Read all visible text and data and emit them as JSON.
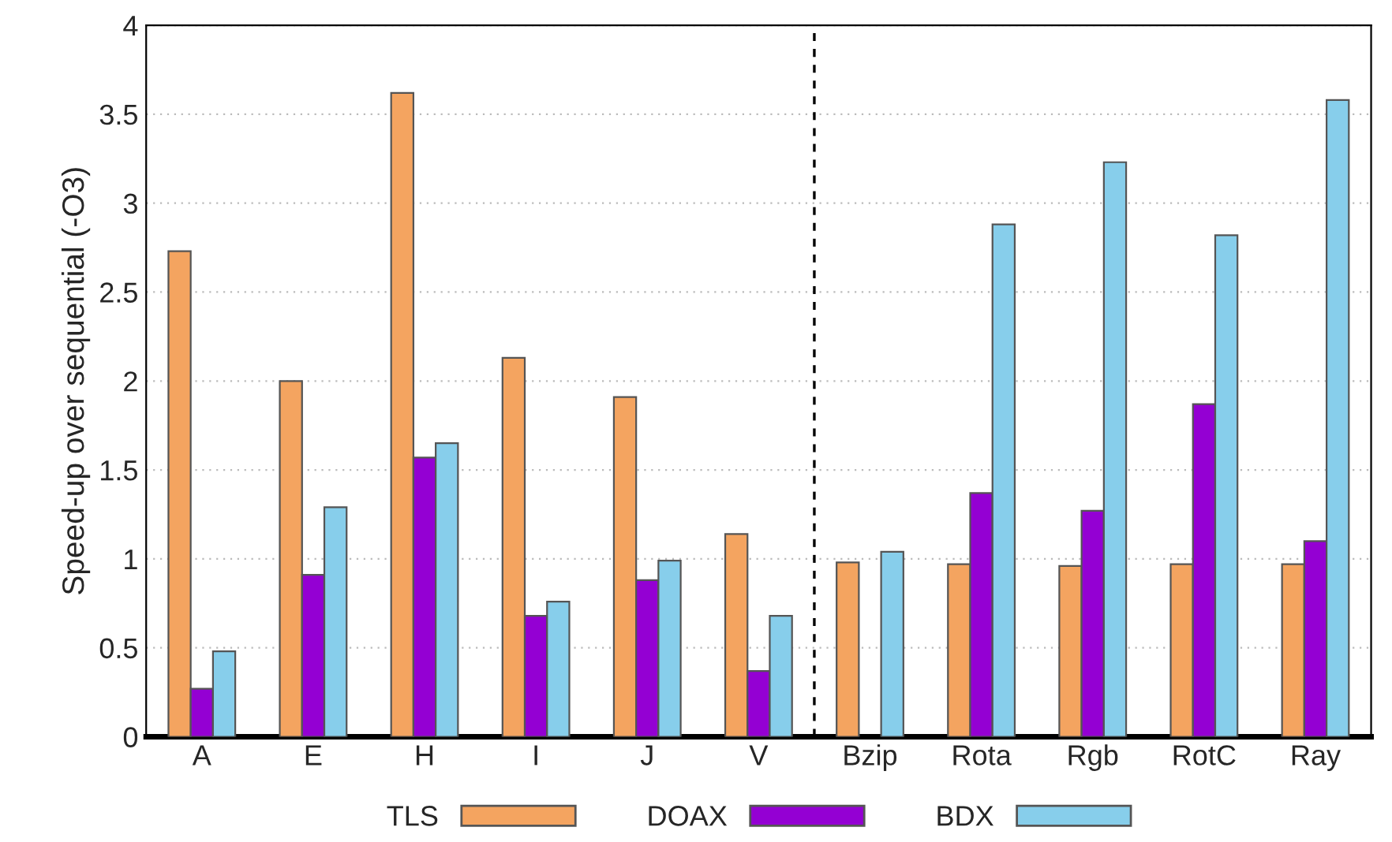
{
  "chart_data": {
    "type": "bar",
    "ylabel": "Speed-up over sequential (-O3)",
    "categories": [
      "A",
      "E",
      "H",
      "I",
      "J",
      "V",
      "Bzip",
      "Rota",
      "Rgb",
      "RotC",
      "Ray"
    ],
    "series": [
      {
        "name": "TLS",
        "color": "#f4a460",
        "values": [
          2.73,
          2.0,
          3.62,
          2.13,
          1.91,
          1.14,
          0.98,
          0.97,
          0.96,
          0.97,
          0.97
        ]
      },
      {
        "name": "DOAX",
        "color": "#9400d3",
        "values": [
          0.27,
          0.91,
          1.57,
          0.68,
          0.88,
          0.37,
          null,
          1.37,
          1.27,
          1.87,
          1.1
        ]
      },
      {
        "name": "BDX",
        "color": "#87ceeb",
        "values": [
          0.48,
          1.29,
          1.65,
          0.76,
          0.99,
          0.68,
          1.04,
          2.88,
          3.23,
          2.82,
          3.58
        ]
      }
    ],
    "ylim": [
      0,
      4
    ],
    "yticks": [
      0,
      0.5,
      1,
      1.5,
      2,
      2.5,
      3,
      3.5,
      4
    ],
    "grid": "y",
    "legend": "bottom"
  }
}
